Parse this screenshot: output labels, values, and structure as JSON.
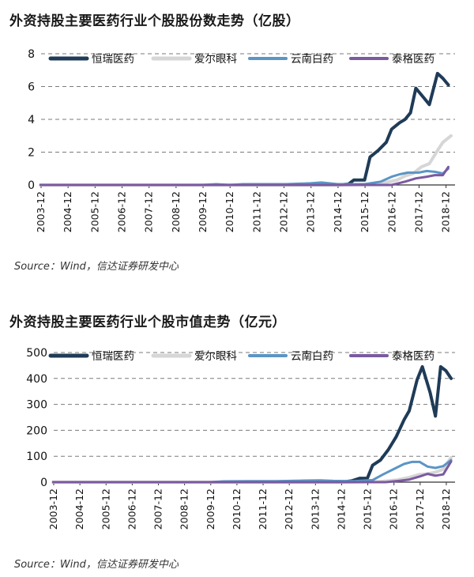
{
  "chart_data": [
    {
      "type": "line",
      "title": "外资持股主要医药行业个股股份数走势（亿股）",
      "source": "Source：Wind，信达证券研发中心",
      "ylim": [
        0,
        8
      ],
      "yticks": [
        "0",
        "2",
        "4",
        "6",
        "8"
      ],
      "grid": "horizontal-dashed",
      "legend": "top",
      "categories": [
        "2003-12",
        "2004-12",
        "2005-12",
        "2006-12",
        "2007-12",
        "2008-12",
        "2009-12",
        "2010-12",
        "2011-12",
        "2012-12",
        "2013-12",
        "2014-12",
        "2015-12",
        "2016-12",
        "2017-12",
        "2018-12"
      ],
      "x_end": 2019.25,
      "series": [
        {
          "name": "恒瑞医药",
          "color": "#1f3b57",
          "width": 4,
          "points": [
            [
              2003.9,
              0
            ],
            [
              2014.9,
              0
            ],
            [
              2015.3,
              0.05
            ],
            [
              2015.5,
              0.3
            ],
            [
              2015.9,
              0.3
            ],
            [
              2016.1,
              1.7
            ],
            [
              2016.4,
              2.1
            ],
            [
              2016.7,
              2.6
            ],
            [
              2016.9,
              3.4
            ],
            [
              2017.2,
              3.8
            ],
            [
              2017.4,
              4.0
            ],
            [
              2017.6,
              4.4
            ],
            [
              2017.8,
              5.9
            ],
            [
              2018.1,
              5.3
            ],
            [
              2018.3,
              4.9
            ],
            [
              2018.6,
              6.8
            ],
            [
              2018.8,
              6.5
            ],
            [
              2019.0,
              6.1
            ]
          ]
        },
        {
          "name": "爱尔眼科",
          "color": "#d6d6d6",
          "width": 4,
          "points": [
            [
              2003.9,
              0
            ],
            [
              2014.9,
              0
            ],
            [
              2016.4,
              0.05
            ],
            [
              2017.1,
              0.3
            ],
            [
              2017.4,
              0.55
            ],
            [
              2017.7,
              0.7
            ],
            [
              2018.0,
              1.1
            ],
            [
              2018.3,
              1.3
            ],
            [
              2018.6,
              2.1
            ],
            [
              2018.8,
              2.6
            ],
            [
              2019.1,
              3.0
            ]
          ]
        },
        {
          "name": "云南白药",
          "color": "#5b95c5",
          "width": 3,
          "points": [
            [
              2003.9,
              0
            ],
            [
              2009.9,
              0
            ],
            [
              2010.4,
              0.05
            ],
            [
              2010.9,
              0
            ],
            [
              2011.4,
              0.05
            ],
            [
              2012.4,
              0.05
            ],
            [
              2013.0,
              0.05
            ],
            [
              2013.9,
              0.1
            ],
            [
              2014.3,
              0.15
            ],
            [
              2014.9,
              0.05
            ],
            [
              2015.9,
              0.05
            ],
            [
              2016.5,
              0.2
            ],
            [
              2016.9,
              0.5
            ],
            [
              2017.2,
              0.65
            ],
            [
              2017.5,
              0.75
            ],
            [
              2017.9,
              0.75
            ],
            [
              2018.2,
              0.85
            ],
            [
              2018.5,
              0.8
            ],
            [
              2018.8,
              0.7
            ],
            [
              2019.0,
              1.0
            ]
          ]
        },
        {
          "name": "泰格医药",
          "color": "#7b5aa0",
          "width": 3,
          "points": [
            [
              2003.9,
              0
            ],
            [
              2016.9,
              0
            ],
            [
              2017.4,
              0.2
            ],
            [
              2017.8,
              0.4
            ],
            [
              2018.2,
              0.5
            ],
            [
              2018.5,
              0.6
            ],
            [
              2018.8,
              0.6
            ],
            [
              2019.0,
              1.1
            ]
          ]
        }
      ]
    },
    {
      "type": "line",
      "title": "外资持股主要医药行业个股市值走势（亿元）",
      "source": "Source：Wind，信达证券研发中心",
      "ylim": [
        0,
        500
      ],
      "yticks": [
        "0",
        "100",
        "200",
        "300",
        "400",
        "500"
      ],
      "grid": "horizontal-dashed",
      "legend": "top",
      "categories": [
        "2003-12",
        "2004-12",
        "2005-12",
        "2006-12",
        "2007-12",
        "2008-12",
        "2009-12",
        "2010-12",
        "2011-12",
        "2012-12",
        "2013-12",
        "2014-12",
        "2015-12",
        "2016-12",
        "2017-12",
        "2018-12"
      ],
      "x_end": 2019.25,
      "series": [
        {
          "name": "恒瑞医药",
          "color": "#1f3b57",
          "width": 4,
          "points": [
            [
              2003.9,
              0
            ],
            [
              2014.9,
              0
            ],
            [
              2015.3,
              5
            ],
            [
              2015.6,
              15
            ],
            [
              2015.9,
              15
            ],
            [
              2016.1,
              65
            ],
            [
              2016.4,
              85
            ],
            [
              2016.7,
              125
            ],
            [
              2017.0,
              175
            ],
            [
              2017.3,
              240
            ],
            [
              2017.5,
              275
            ],
            [
              2017.8,
              395
            ],
            [
              2018.0,
              445
            ],
            [
              2018.3,
              345
            ],
            [
              2018.5,
              255
            ],
            [
              2018.7,
              445
            ],
            [
              2018.9,
              430
            ],
            [
              2019.1,
              400
            ]
          ]
        },
        {
          "name": "爱尔眼科",
          "color": "#d6d6d6",
          "width": 4,
          "points": [
            [
              2003.9,
              0
            ],
            [
              2014.9,
              0
            ],
            [
              2016.4,
              2
            ],
            [
              2017.0,
              8
            ],
            [
              2017.5,
              18
            ],
            [
              2017.9,
              30
            ],
            [
              2018.2,
              32
            ],
            [
              2018.5,
              38
            ],
            [
              2018.8,
              50
            ],
            [
              2019.1,
              95
            ]
          ]
        },
        {
          "name": "云南白药",
          "color": "#5b95c5",
          "width": 3,
          "points": [
            [
              2003.9,
              0
            ],
            [
              2009.9,
              0
            ],
            [
              2010.4,
              3
            ],
            [
              2011.4,
              4
            ],
            [
              2012.4,
              4
            ],
            [
              2013.0,
              5
            ],
            [
              2013.5,
              6
            ],
            [
              2014.1,
              7
            ],
            [
              2014.6,
              5
            ],
            [
              2015.4,
              4
            ],
            [
              2016.1,
              8
            ],
            [
              2016.5,
              30
            ],
            [
              2016.9,
              50
            ],
            [
              2017.3,
              70
            ],
            [
              2017.6,
              78
            ],
            [
              2017.9,
              78
            ],
            [
              2018.2,
              60
            ],
            [
              2018.5,
              55
            ],
            [
              2018.8,
              62
            ],
            [
              2019.1,
              85
            ]
          ]
        },
        {
          "name": "泰格医药",
          "color": "#7b5aa0",
          "width": 3,
          "points": [
            [
              2003.9,
              0
            ],
            [
              2016.6,
              0
            ],
            [
              2017.1,
              5
            ],
            [
              2017.5,
              10
            ],
            [
              2017.9,
              22
            ],
            [
              2018.2,
              32
            ],
            [
              2018.5,
              25
            ],
            [
              2018.8,
              30
            ],
            [
              2019.1,
              80
            ]
          ]
        }
      ]
    }
  ]
}
